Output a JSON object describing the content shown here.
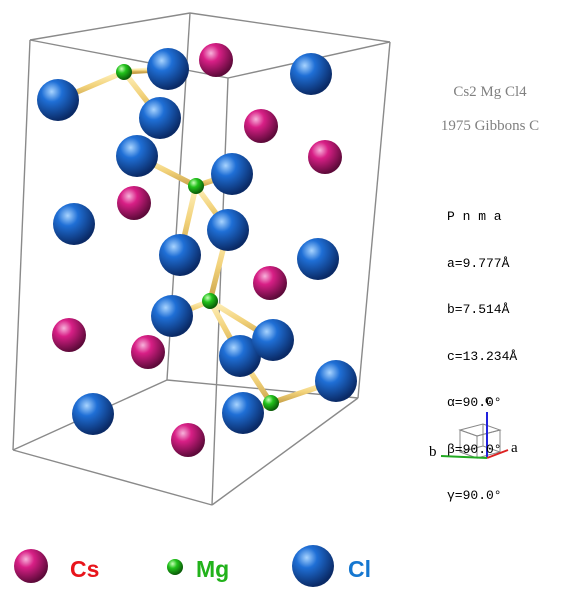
{
  "structure": {
    "formula": "Cs2 Mg Cl4",
    "reference": "1975 Gibbons  C",
    "space_group": "P n m a",
    "cell": {
      "a": "a=9.777Å",
      "b": "b=7.514Å",
      "c": "c=13.234Å",
      "alpha": "α=90.0°",
      "beta": "β=90.0°",
      "gamma": "γ=90.0°"
    }
  },
  "axes": {
    "a": "a",
    "b": "b",
    "c": "c"
  },
  "legend": [
    {
      "label": "Cs",
      "color": "#e0137f",
      "text_color": "#e8141b"
    },
    {
      "label": "Mg",
      "color": "#22c21b",
      "text_color": "#22b21b"
    },
    {
      "label": "Cl",
      "color": "#1f6fd6",
      "text_color": "#1577d0"
    }
  ],
  "colors": {
    "cell_edge": "#8a8a8a",
    "bond": "#f2d27a"
  }
}
